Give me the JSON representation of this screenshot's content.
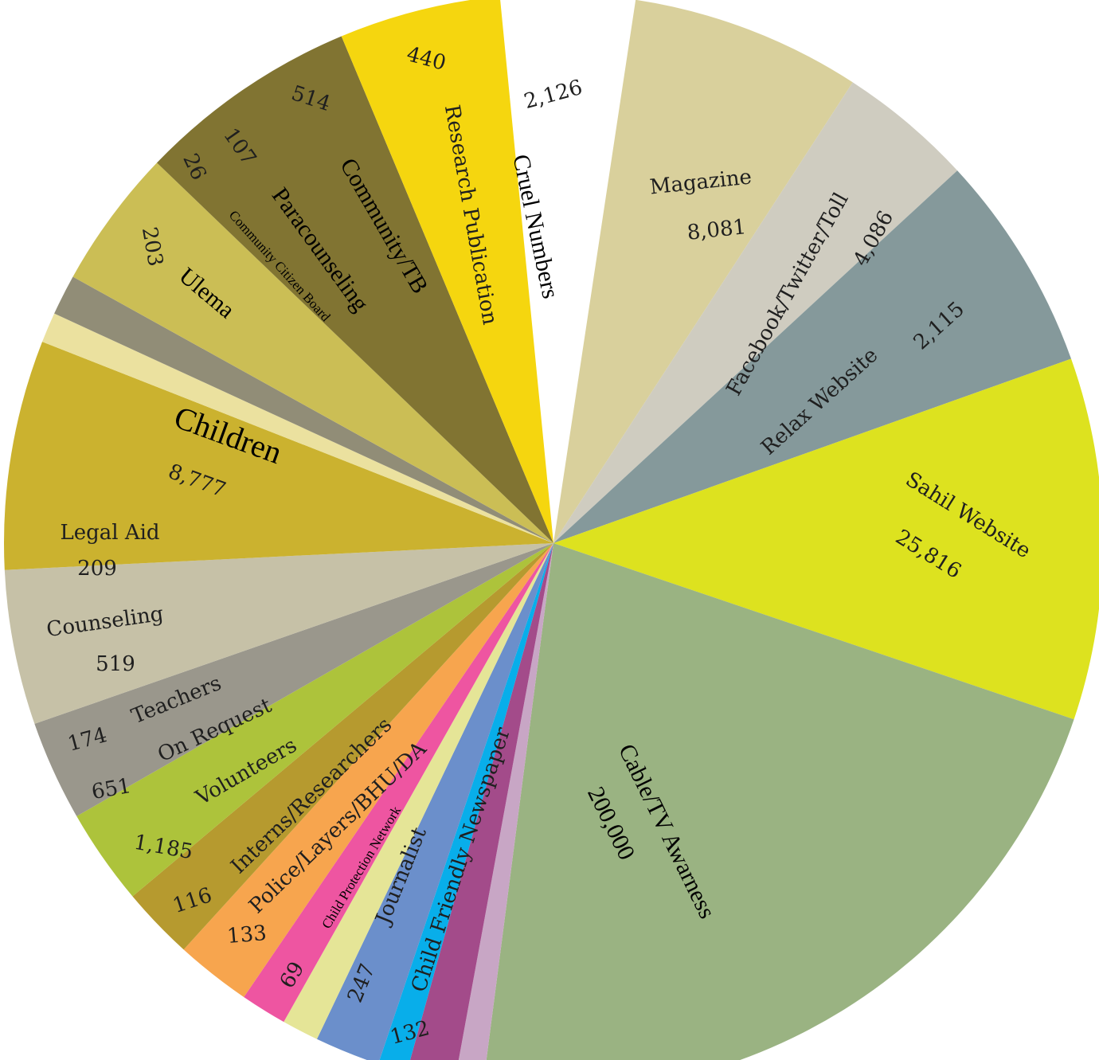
{
  "chart_data": {
    "type": "pie",
    "slices": [
      {
        "label": "Magazine",
        "value": 8081,
        "value_text": "8,081",
        "color": "#d9d09c"
      },
      {
        "label": "Facebook/Twitter/Toll",
        "value": 4086,
        "value_text": "4,086",
        "color": "#cfccc0"
      },
      {
        "label": "Relax Website",
        "value": 2115,
        "value_text": "2,115",
        "color": "#85999b"
      },
      {
        "label": "Sahil Website",
        "value": 25816,
        "value_text": "25,816",
        "color": "#dde21f"
      },
      {
        "label": "Cable/TV Awarness",
        "value": 200000,
        "value_text": "200,000",
        "color": "#9ab382"
      },
      {
        "label": "Child Friendly Newspaper",
        "value": 132,
        "value_text": "132",
        "color": "#c8a6c5"
      },
      {
        "label": "Journalist",
        "value": 247,
        "value_text": "247",
        "color": "#a34b8a"
      },
      {
        "label": "Child Protection Network",
        "value": 69,
        "value_text": "69",
        "color": "#08aeea"
      },
      {
        "label": "Police/Layers/BHU/DA",
        "value": 133,
        "value_text": "133",
        "color": "#6b8fcb"
      },
      {
        "label": "Interns/Researchers",
        "value": 116,
        "value_text": "116",
        "color": "#e5e597"
      },
      {
        "label": "Volunteers",
        "value": 1185,
        "value_text": "1,185",
        "color": "#ee55a1"
      },
      {
        "label": "On Request",
        "value": 651,
        "value_text": "651",
        "color": "#f7a54e"
      },
      {
        "label": "Teachers",
        "value": 174,
        "value_text": "174",
        "color": "#b69a2f"
      },
      {
        "label": "Counseling",
        "value": 519,
        "value_text": "519",
        "color": "#adc33b"
      },
      {
        "label": "Legal Aid",
        "value": 209,
        "value_text": "209",
        "color": "#9a978c"
      },
      {
        "label": "Children",
        "value": 8777,
        "value_text": "8,777",
        "color": "#c6c1a7"
      },
      {
        "label": "Ulema",
        "value": 203,
        "value_text": "203",
        "color": "#cbb22f"
      },
      {
        "label": "Community Citizen Board",
        "value": 26,
        "value_text": "26",
        "color": "#ebe19f"
      },
      {
        "label": "Paracounseling",
        "value": 107,
        "value_text": "107",
        "color": "#918d77"
      },
      {
        "label": "Community/TB",
        "value": 514,
        "value_text": "514",
        "color": "#cbbe55"
      },
      {
        "label": "Research Publication",
        "value": 440,
        "value_text": "440",
        "color": "#817432"
      },
      {
        "label": "Cruel Numbers",
        "value": 2126,
        "value_text": "2,126",
        "color": "#f5d60f"
      }
    ]
  }
}
